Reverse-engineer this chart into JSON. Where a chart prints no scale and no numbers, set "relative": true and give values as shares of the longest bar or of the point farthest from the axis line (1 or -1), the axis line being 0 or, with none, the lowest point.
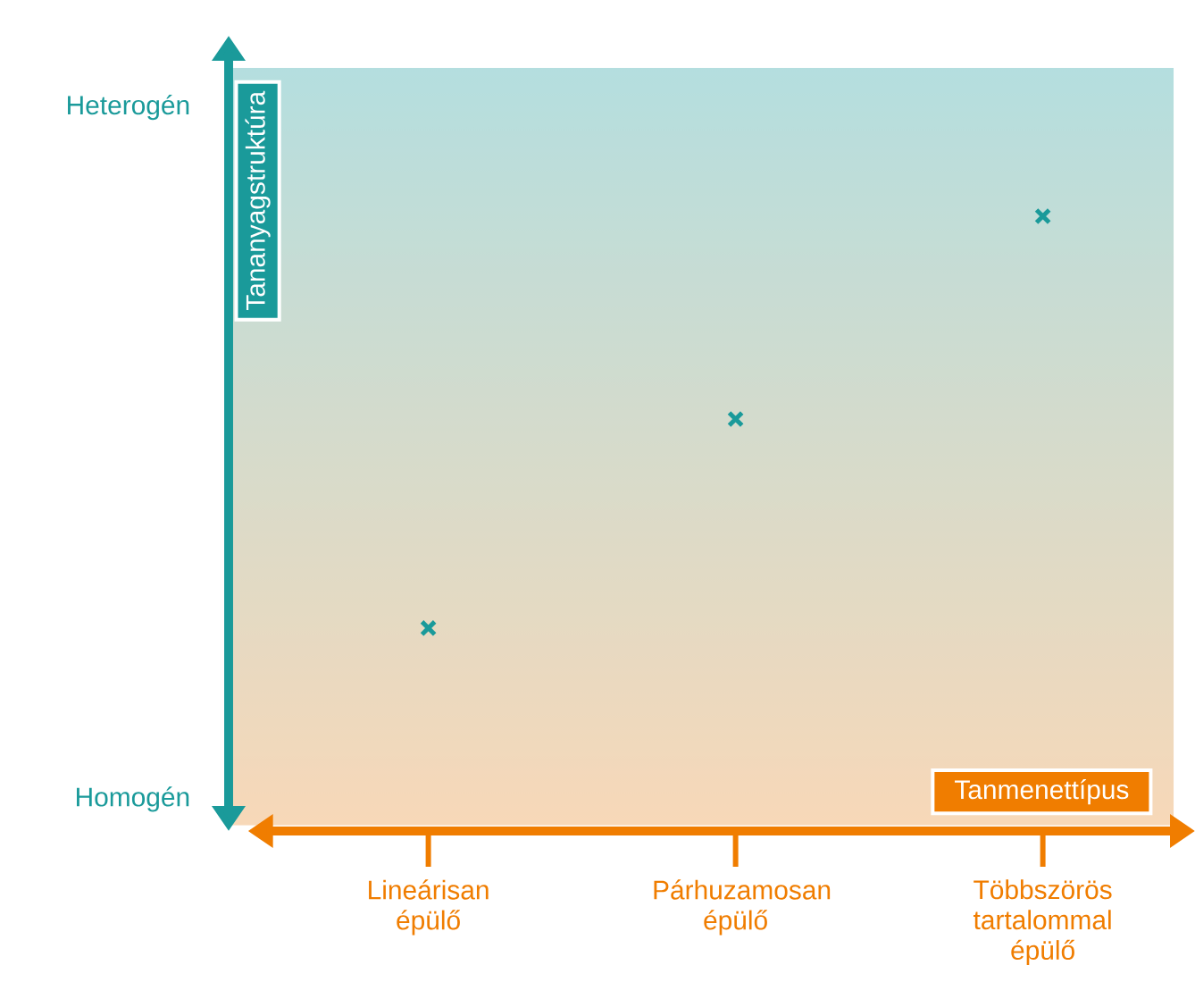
{
  "chart_data": {
    "type": "scatter",
    "xlabel": "Tanmenettípus",
    "ylabel": "Tananyagstruktúra",
    "categories": [
      "Lineárisan épülő",
      "Párhuzamosan épülő",
      "Többszörös tartalommal épülő"
    ],
    "values": [
      0.33,
      0.67,
      1
    ],
    "color": "#1a9a9a",
    "marker": "cross",
    "relative": true,
    "annotations": [
      "Heterogén",
      "Homogén"
    ],
    "grid": false
  }
}
